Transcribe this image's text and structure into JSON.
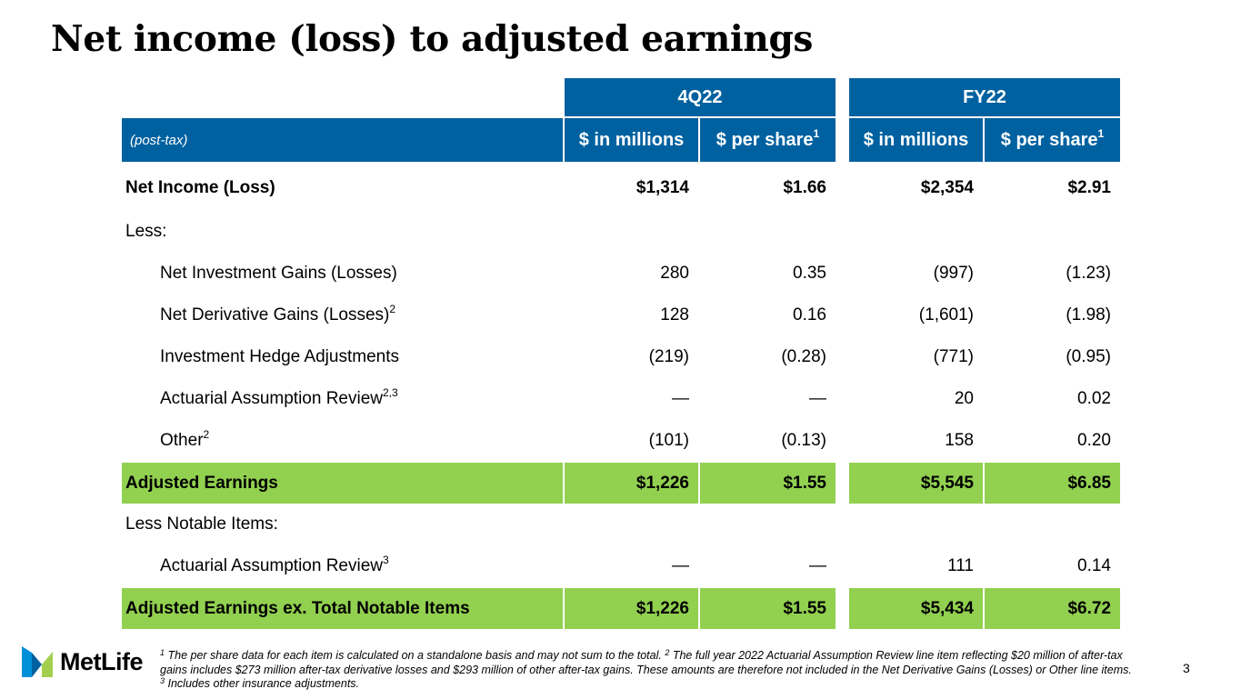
{
  "title": "Net income (loss) to adjusted earnings",
  "colors": {
    "header_blue": "#0061a0",
    "highlight_green": "#92d050"
  },
  "table": {
    "period_headers": [
      "4Q22",
      "FY22"
    ],
    "basis_label": "(post-tax)",
    "column_headers": [
      "$ in millions",
      "$ per share",
      "$ in millions",
      "$ per share"
    ],
    "column_header_sup": "1",
    "rows": [
      {
        "label": "Net Income (Loss)",
        "values": [
          "$1,314",
          "$1.66",
          "$2,354",
          "$2.91"
        ]
      },
      {
        "label": "Less:"
      },
      {
        "label": "Net Investment Gains (Losses)",
        "values": [
          "280",
          "0.35",
          "(997)",
          "(1.23)"
        ]
      },
      {
        "label": "Net Derivative Gains (Losses)",
        "sup": "2",
        "values": [
          "128",
          "0.16",
          "(1,601)",
          "(1.98)"
        ]
      },
      {
        "label": "Investment Hedge Adjustments",
        "values": [
          "(219)",
          "(0.28)",
          "(771)",
          "(0.95)"
        ]
      },
      {
        "label": "Actuarial Assumption Review",
        "sup": "2,3",
        "values": [
          "—",
          "—",
          "20",
          "0.02"
        ]
      },
      {
        "label": "Other",
        "sup": "2",
        "values": [
          "(101)",
          "(0.13)",
          "158",
          "0.20"
        ]
      },
      {
        "label": "Adjusted Earnings",
        "values": [
          "$1,226",
          "$1.55",
          "$5,545",
          "$6.85"
        ]
      },
      {
        "label": "Less Notable Items:"
      },
      {
        "label": "Actuarial Assumption Review",
        "sup": "3",
        "values": [
          "—",
          "—",
          "111",
          "0.14"
        ]
      },
      {
        "label": "Adjusted Earnings ex. Total Notable Items",
        "values": [
          "$1,226",
          "$1.55",
          "$5,434",
          "$6.72"
        ]
      }
    ]
  },
  "footnote": {
    "n1": "1",
    "t1": " The per share data for each item is calculated on a standalone basis and may not sum to the total. ",
    "n2": "2",
    "t2": " The full year 2022 Actuarial Assumption Review line item reflecting $20 million of after-tax gains includes $273 million after-tax derivative losses and $293 million of other after-tax gains. These amounts are therefore not included in the Net Derivative Gains (Losses) or Other line items. ",
    "n3": "3",
    "t3": " Includes other insurance adjustments."
  },
  "logo": {
    "text": "MetLife"
  },
  "page_number": "3"
}
